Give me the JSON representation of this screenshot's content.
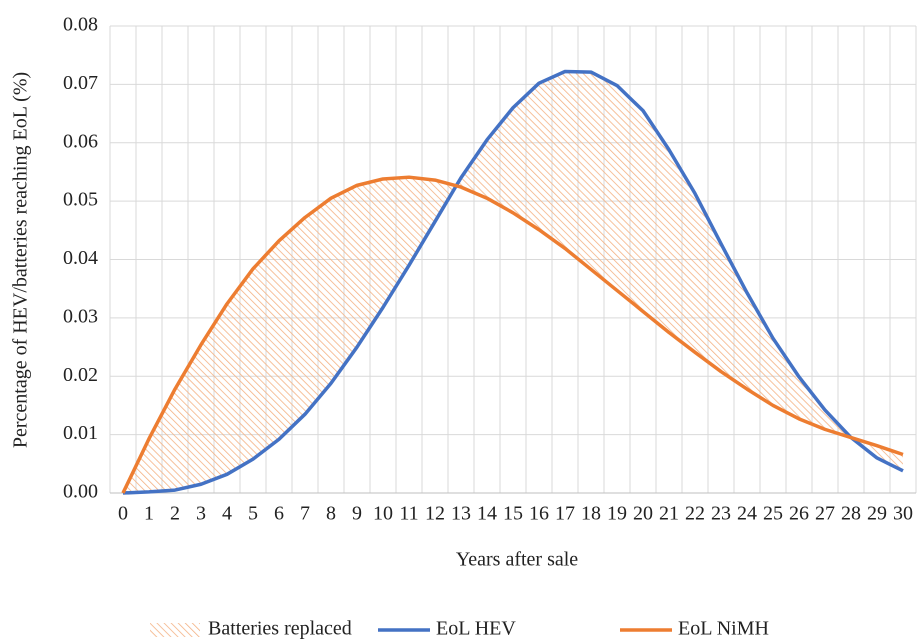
{
  "chart_data": {
    "type": "line",
    "x_label": "Years after sale",
    "y_label": "Percentage of  HEV/batteries reaching EoL (%)",
    "categories": [
      "0",
      "1",
      "2",
      "3",
      "4",
      "5",
      "6",
      "7",
      "8",
      "9",
      "10",
      "11",
      "12",
      "13",
      "14",
      "15",
      "16",
      "17",
      "18",
      "19",
      "20",
      "21",
      "22",
      "23",
      "24",
      "25",
      "26",
      "27",
      "28",
      "29",
      "30"
    ],
    "series": [
      {
        "name": "EoL HEV",
        "color": "#4472c4",
        "values": [
          0,
          0.0002,
          0.0005,
          0.0015,
          0.0032,
          0.0058,
          0.0092,
          0.0135,
          0.0188,
          0.025,
          0.0318,
          0.039,
          0.0465,
          0.054,
          0.0605,
          0.066,
          0.0702,
          0.0722,
          0.0721,
          0.0698,
          0.0655,
          0.0588,
          0.0513,
          0.0427,
          0.0343,
          0.0265,
          0.0199,
          0.0142,
          0.0095,
          0.006,
          0.0038
        ]
      },
      {
        "name": "EoL NiMH",
        "color": "#ed7d31",
        "values": [
          0,
          0.0093,
          0.0178,
          0.0254,
          0.0324,
          0.0384,
          0.0432,
          0.0472,
          0.0505,
          0.0527,
          0.0538,
          0.0541,
          0.0536,
          0.0524,
          0.0505,
          0.048,
          0.0451,
          0.0419,
          0.0383,
          0.0347,
          0.0311,
          0.0275,
          0.0241,
          0.0208,
          0.0178,
          0.015,
          0.0127,
          0.0109,
          0.0095,
          0.0081,
          0.0066
        ]
      }
    ],
    "area": {
      "name": "Batteries replaced",
      "color": "#f4b183"
    },
    "ylim": [
      0,
      0.08
    ],
    "yticks": [
      {
        "value": 0,
        "label": "0.00"
      },
      0.01,
      0.02,
      0.03,
      0.04,
      0.05,
      0.06,
      0.07,
      0.08
    ],
    "grid": true,
    "legend": "bottom"
  }
}
